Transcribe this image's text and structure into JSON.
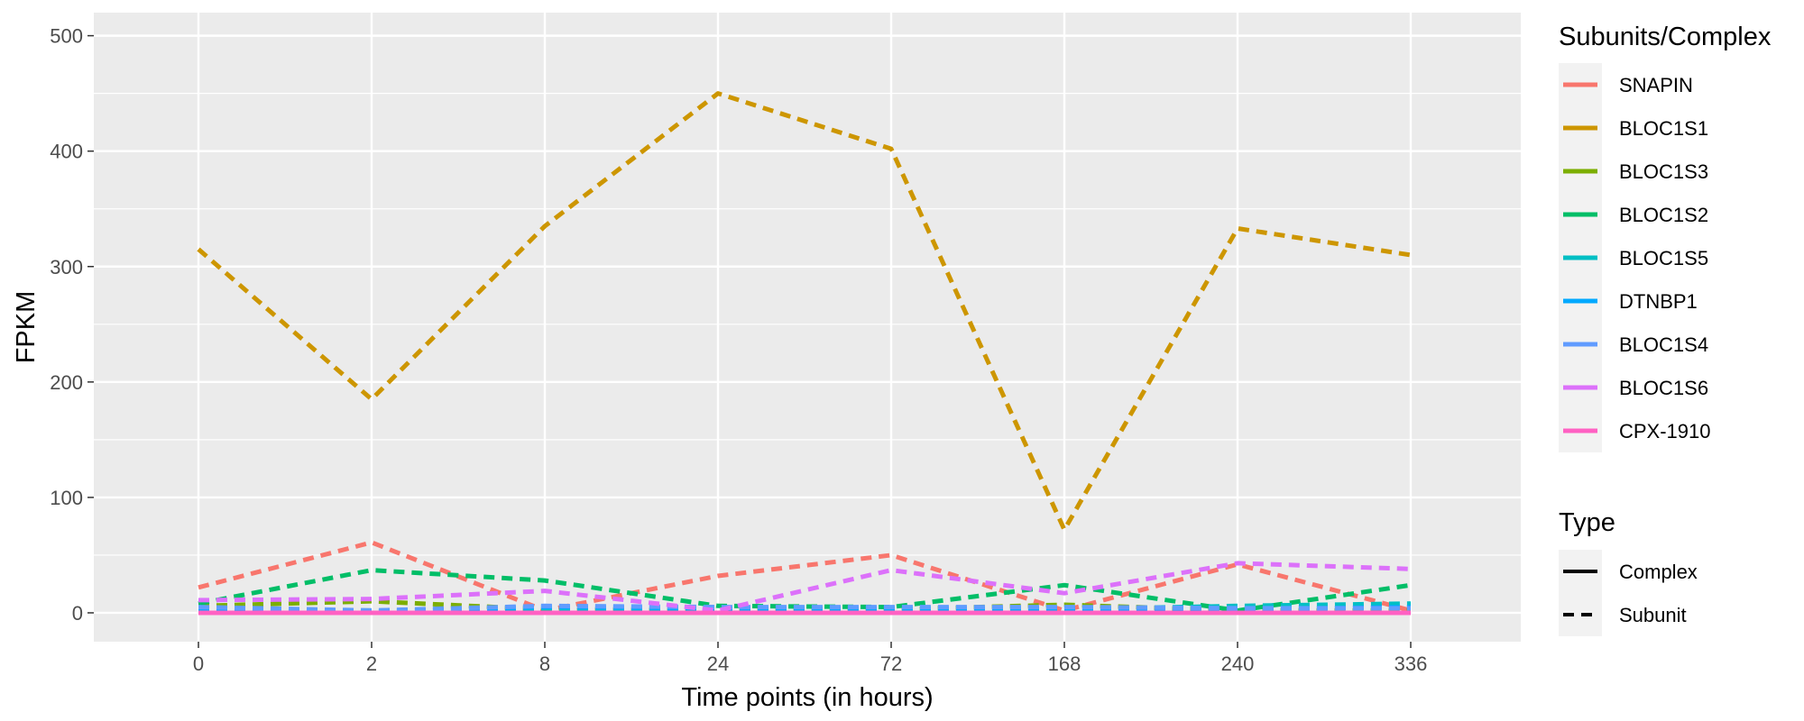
{
  "chart_data": {
    "type": "line",
    "xlabel": "Time points (in hours)",
    "ylabel": "FPKM",
    "categories": [
      "0",
      "2",
      "8",
      "24",
      "72",
      "168",
      "240",
      "336"
    ],
    "ylim": [
      -25,
      520
    ],
    "yticks": [
      0,
      100,
      200,
      300,
      400,
      500
    ],
    "grid": true,
    "legend_position": "right",
    "series": [
      {
        "name": "SNAPIN",
        "type": "Subunit",
        "color": "#F8766D",
        "values": [
          22,
          61,
          2,
          32,
          50,
          2,
          42,
          2
        ]
      },
      {
        "name": "BLOC1S1",
        "type": "Subunit",
        "color": "#CD9600",
        "values": [
          315,
          185,
          335,
          450,
          402,
          72,
          333,
          310
        ]
      },
      {
        "name": "BLOC1S3",
        "type": "Subunit",
        "color": "#7CAE00",
        "values": [
          6,
          10,
          3,
          2,
          3,
          7,
          2,
          2
        ]
      },
      {
        "name": "BLOC1S2",
        "type": "Subunit",
        "color": "#00BE67",
        "values": [
          8,
          37,
          28,
          6,
          5,
          24,
          2,
          24
        ]
      },
      {
        "name": "BLOC1S5",
        "type": "Subunit",
        "color": "#00BFC4",
        "values": [
          3,
          2,
          4,
          3,
          3,
          3,
          6,
          8
        ]
      },
      {
        "name": "DTNBP1",
        "type": "Subunit",
        "color": "#00A9FF",
        "values": [
          4,
          1,
          5,
          4,
          4,
          4,
          3,
          5
        ]
      },
      {
        "name": "BLOC1S4",
        "type": "Subunit",
        "color": "#619CFF",
        "values": [
          5,
          2,
          6,
          5,
          5,
          5,
          4,
          4
        ]
      },
      {
        "name": "BLOC1S6",
        "type": "Subunit",
        "color": "#DC71FA",
        "values": [
          11,
          12,
          19,
          2,
          37,
          17,
          43,
          38
        ]
      },
      {
        "name": "CPX-1910",
        "type": "Complex",
        "color": "#FF61C3",
        "values": [
          0,
          0,
          0,
          0,
          0,
          0,
          0,
          0
        ]
      }
    ],
    "legend": {
      "color_title": "Subunits/Complex",
      "type_title": "Type",
      "type_entries": [
        {
          "label": "Complex",
          "dash": "solid"
        },
        {
          "label": "Subunit",
          "dash": "dashed"
        }
      ]
    }
  }
}
